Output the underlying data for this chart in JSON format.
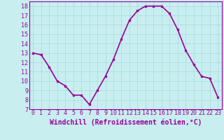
{
  "x": [
    0,
    1,
    2,
    3,
    4,
    5,
    6,
    7,
    8,
    9,
    10,
    11,
    12,
    13,
    14,
    15,
    16,
    17,
    18,
    19,
    20,
    21,
    22,
    23
  ],
  "y": [
    13.0,
    12.8,
    11.5,
    10.0,
    9.5,
    8.5,
    8.5,
    7.5,
    9.0,
    10.5,
    12.3,
    14.5,
    16.5,
    17.5,
    18.0,
    18.0,
    18.0,
    17.2,
    15.5,
    13.3,
    11.8,
    10.5,
    10.3,
    8.3
  ],
  "line_color": "#990099",
  "marker": "s",
  "marker_size": 2,
  "bg_color": "#c8eef0",
  "grid_color": "#aadddd",
  "xlabel": "Windchill (Refroidissement éolien,°C)",
  "xlabel_color": "#990099",
  "tick_color": "#990099",
  "ylim": [
    7,
    18.5
  ],
  "yticks": [
    7,
    8,
    9,
    10,
    11,
    12,
    13,
    14,
    15,
    16,
    17,
    18
  ],
  "xticks": [
    0,
    1,
    2,
    3,
    4,
    5,
    6,
    7,
    8,
    9,
    10,
    11,
    12,
    13,
    14,
    15,
    16,
    17,
    18,
    19,
    20,
    21,
    22,
    23
  ],
  "xtick_labels": [
    "0",
    "1",
    "2",
    "3",
    "4",
    "5",
    "6",
    "7",
    "8",
    "9",
    "10",
    "11",
    "12",
    "13",
    "14",
    "15",
    "16",
    "17",
    "18",
    "19",
    "20",
    "21",
    "22",
    "23"
  ],
  "line_width": 1.2,
  "tick_fontsize": 6,
  "xlabel_fontsize": 7
}
